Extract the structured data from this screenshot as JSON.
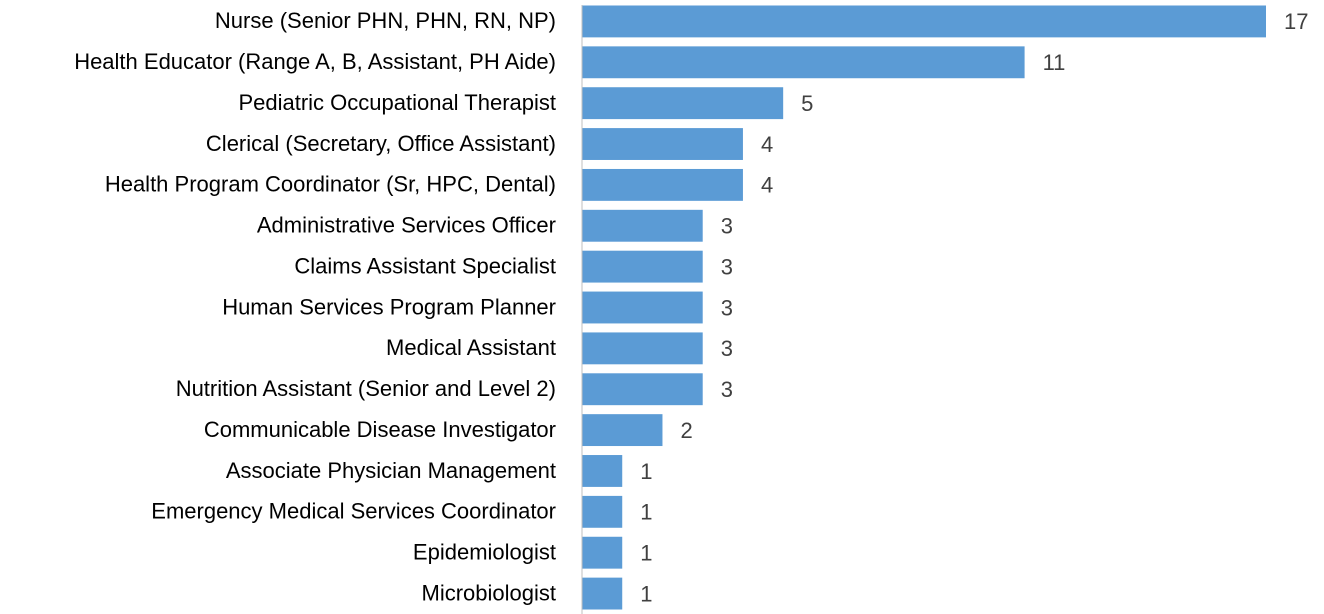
{
  "chart_data": {
    "type": "barh",
    "categories": [
      "Nurse (Senior PHN, PHN, RN, NP)",
      "Health Educator (Range A, B, Assistant, PH Aide)",
      "Pediatric Occupational Therapist",
      "Clerical (Secretary, Office Assistant)",
      "Health Program Coordinator (Sr, HPC, Dental)",
      "Administrative Services Officer",
      "Claims Assistant Specialist",
      "Human Services Program Planner",
      "Medical Assistant",
      "Nutrition Assistant (Senior and Level 2)",
      "Communicable Disease Investigator",
      "Associate Physician Management",
      "Emergency Medical Services Coordinator",
      "Epidemiologist",
      "Microbiologist"
    ],
    "values": [
      17,
      11,
      5,
      4,
      4,
      3,
      3,
      3,
      3,
      3,
      2,
      1,
      1,
      1,
      1
    ],
    "color": "#5b9bd5"
  }
}
